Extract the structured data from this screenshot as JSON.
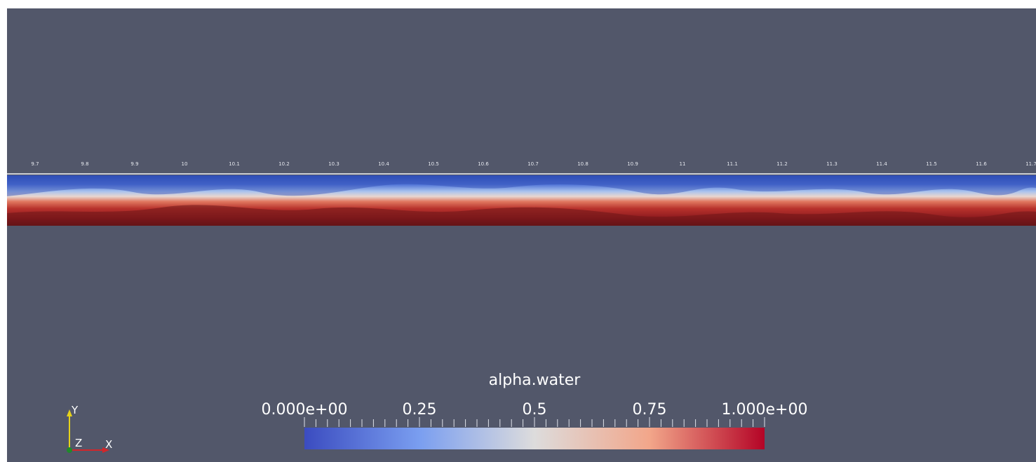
{
  "view": {
    "ruler_ticks": [
      "9.7",
      "9.8",
      "9.9",
      "10",
      "10.1",
      "10.2",
      "10.3",
      "10.4",
      "10.5",
      "10.6",
      "10.7",
      "10.8",
      "10.9",
      "11",
      "11.1",
      "11.2",
      "11.3",
      "11.4",
      "11.5",
      "11.6",
      "11.7"
    ]
  },
  "colorbar": {
    "title": "alpha.water",
    "min_label": "0.000e+00",
    "label_025": "0.25",
    "label_05": "0.5",
    "label_075": "0.75",
    "max_label": "1.000e+00",
    "colors": {
      "low": "#3b4cc0",
      "mid": "#dddcdc",
      "high": "#b40426"
    }
  },
  "axes": {
    "y": "Y",
    "z": "Z",
    "x": "X"
  },
  "colors": {
    "background": "#52576a"
  }
}
